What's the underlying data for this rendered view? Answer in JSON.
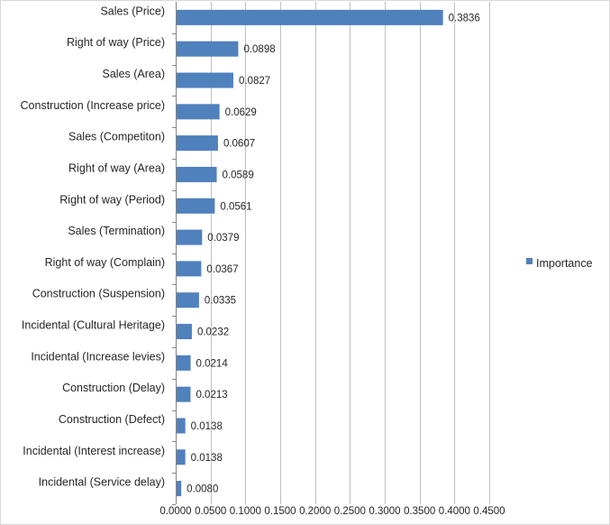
{
  "chart_data": {
    "type": "bar",
    "orientation": "horizontal",
    "categories": [
      "Sales (Price)",
      "Right of way (Price)",
      "Sales (Area)",
      "Construction (Increase price)",
      "Sales (Competiton)",
      "Right of way (Area)",
      "Right of way (Period)",
      "Sales (Termination)",
      "Right of way (Complain)",
      "Construction (Suspension)",
      "Incidental (Cultural Heritage)",
      "Incidental (Increase levies)",
      "Construction (Delay)",
      "Construction (Defect)",
      "Incidental (Interest increase)",
      "Incidental (Service delay)"
    ],
    "series": [
      {
        "name": "Importance",
        "color": "#4f81bd",
        "values": [
          0.3836,
          0.0898,
          0.0827,
          0.0629,
          0.0607,
          0.0589,
          0.0561,
          0.0379,
          0.0367,
          0.0335,
          0.0232,
          0.0214,
          0.0213,
          0.0138,
          0.0138,
          0.008
        ],
        "value_labels": [
          "0.3836",
          "0.0898",
          "0.0827",
          "0.0629",
          "0.0607",
          "0.0589",
          "0.0561",
          "0.0379",
          "0.0367",
          "0.0335",
          "0.0232",
          "0.0214",
          "0.0213",
          "0.0138",
          "0.0138",
          "0.0080"
        ]
      }
    ],
    "xlim": [
      0,
      0.45
    ],
    "xticks": [
      0,
      0.05,
      0.1,
      0.15,
      0.2,
      0.25,
      0.3,
      0.35,
      0.4,
      0.45
    ],
    "xtick_labels": [
      "0.0000",
      "0.0500",
      "0.1000",
      "0.1500",
      "0.2000",
      "0.2500",
      "0.3000",
      "0.3500",
      "0.4000",
      "0.4500"
    ],
    "grid": "vertical",
    "legend": {
      "position": "right",
      "entries": [
        "Importance"
      ]
    },
    "title": "",
    "xlabel": "",
    "ylabel": ""
  }
}
